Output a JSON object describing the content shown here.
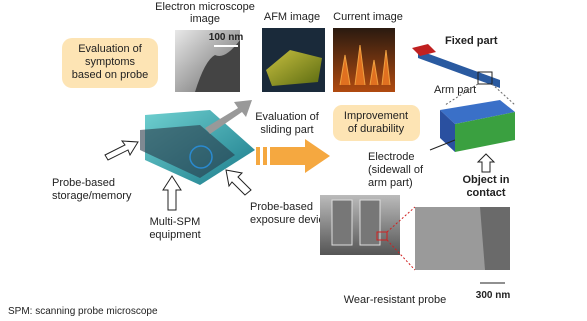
{
  "labels": {
    "em_image": [
      "Electron microscope",
      "image"
    ],
    "em_scale": "100 nm",
    "afm_image": "AFM image",
    "current_image": "Current image",
    "symptoms": [
      "Evaluation of",
      "symptoms",
      "based on probe"
    ],
    "fixed_part": "Fixed part",
    "arm_part": "Arm part",
    "sliding": [
      "Evaluation of",
      "sliding part"
    ],
    "durability": [
      "Improvement",
      "of durability"
    ],
    "electrode": [
      "Electrode",
      "(sidewall of",
      "arm part)"
    ],
    "object": [
      "Object in",
      "contact"
    ],
    "storage": [
      "Probe-based",
      "storage/memory"
    ],
    "multi_spm": [
      "Multi-SPM",
      "equipment"
    ],
    "exposure": [
      "Probe-based",
      "exposure device"
    ],
    "wear_probe": "Wear-resistant probe",
    "sem_scale": "300 nm",
    "footnote": "SPM: scanning probe microscope"
  }
}
